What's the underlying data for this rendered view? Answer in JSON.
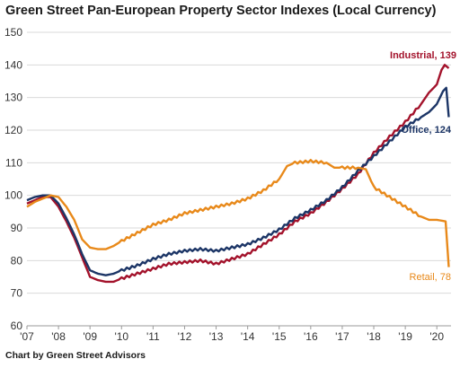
{
  "title": "Green Street Pan-European Property Sector Indexes (Local Currency)",
  "footer": "Chart by Green Street Advisors",
  "colors": {
    "industrial": "#a3122b",
    "office": "#1c3566",
    "retail": "#e8891a",
    "grid": "#d9d9d9",
    "axis": "#9a9a9a"
  },
  "chart_data": {
    "type": "line",
    "title": "Green Street Pan-European Property Sector Indexes (Local Currency)",
    "xlabel": "",
    "ylabel": "",
    "xlim": [
      2007.0,
      2020.45
    ],
    "ylim": [
      60,
      150
    ],
    "grid": true,
    "x_ticks": [
      "'07",
      "'08",
      "'09",
      "'10",
      "'11",
      "'12",
      "'13",
      "'14",
      "'15",
      "'16",
      "'17",
      "'18",
      "'19",
      "'20"
    ],
    "y_ticks": [
      60,
      70,
      80,
      90,
      100,
      110,
      120,
      130,
      140,
      150
    ],
    "series": [
      {
        "name": "Industrial",
        "end_label": "Industrial, 139",
        "color": "#a3122b",
        "points": [
          [
            2007.0,
            97.5
          ],
          [
            2007.25,
            98.5
          ],
          [
            2007.5,
            99.5
          ],
          [
            2007.75,
            99.5
          ],
          [
            2008.0,
            96.5
          ],
          [
            2008.25,
            92
          ],
          [
            2008.5,
            87
          ],
          [
            2008.75,
            81
          ],
          [
            2009.0,
            75
          ],
          [
            2009.25,
            74
          ],
          [
            2009.5,
            73.5
          ],
          [
            2009.75,
            73.5
          ],
          [
            2010.0,
            74.5
          ],
          [
            2010.5,
            76
          ],
          [
            2011.0,
            77.5
          ],
          [
            2011.5,
            79
          ],
          [
            2012.0,
            79.5
          ],
          [
            2012.5,
            80
          ],
          [
            2013.0,
            79
          ],
          [
            2013.5,
            80.5
          ],
          [
            2014.0,
            82
          ],
          [
            2014.5,
            85
          ],
          [
            2015.0,
            88
          ],
          [
            2015.5,
            92
          ],
          [
            2016.0,
            94.5
          ],
          [
            2016.5,
            98
          ],
          [
            2017.0,
            102
          ],
          [
            2017.5,
            106.5
          ],
          [
            2018.0,
            113
          ],
          [
            2018.5,
            118
          ],
          [
            2019.0,
            122.5
          ],
          [
            2019.5,
            128
          ],
          [
            2019.75,
            131.5
          ],
          [
            2020.0,
            134
          ],
          [
            2020.15,
            138.5
          ],
          [
            2020.25,
            140
          ],
          [
            2020.38,
            139
          ]
        ]
      },
      {
        "name": "Office",
        "end_label": "Office, 124",
        "color": "#1c3566",
        "points": [
          [
            2007.0,
            98.5
          ],
          [
            2007.25,
            99.5
          ],
          [
            2007.5,
            100
          ],
          [
            2007.75,
            100
          ],
          [
            2008.0,
            97.5
          ],
          [
            2008.25,
            93
          ],
          [
            2008.5,
            88
          ],
          [
            2008.75,
            82
          ],
          [
            2009.0,
            77
          ],
          [
            2009.25,
            76
          ],
          [
            2009.5,
            75.5
          ],
          [
            2009.75,
            76
          ],
          [
            2010.0,
            77
          ],
          [
            2010.5,
            78.5
          ],
          [
            2011.0,
            80.5
          ],
          [
            2011.5,
            82
          ],
          [
            2012.0,
            83
          ],
          [
            2012.5,
            83.5
          ],
          [
            2013.0,
            83
          ],
          [
            2013.5,
            84
          ],
          [
            2014.0,
            85
          ],
          [
            2014.5,
            87
          ],
          [
            2015.0,
            89.5
          ],
          [
            2015.5,
            93
          ],
          [
            2016.0,
            95.5
          ],
          [
            2016.5,
            98.5
          ],
          [
            2017.0,
            102.5
          ],
          [
            2017.5,
            107.5
          ],
          [
            2018.0,
            112
          ],
          [
            2018.5,
            116.5
          ],
          [
            2019.0,
            121
          ],
          [
            2019.5,
            124
          ],
          [
            2019.75,
            125.5
          ],
          [
            2020.0,
            128
          ],
          [
            2020.2,
            132
          ],
          [
            2020.3,
            133
          ],
          [
            2020.38,
            124
          ]
        ]
      },
      {
        "name": "Retail",
        "end_label": "Retail, 78",
        "color": "#e8891a",
        "points": [
          [
            2007.0,
            96.5
          ],
          [
            2007.25,
            98
          ],
          [
            2007.5,
            99
          ],
          [
            2007.75,
            100
          ],
          [
            2008.0,
            99.5
          ],
          [
            2008.25,
            96.5
          ],
          [
            2008.5,
            92.5
          ],
          [
            2008.75,
            86.5
          ],
          [
            2009.0,
            84
          ],
          [
            2009.25,
            83.5
          ],
          [
            2009.5,
            83.5
          ],
          [
            2009.75,
            84.5
          ],
          [
            2010.0,
            86
          ],
          [
            2010.5,
            88.5
          ],
          [
            2011.0,
            91
          ],
          [
            2011.5,
            92.5
          ],
          [
            2012.0,
            94.5
          ],
          [
            2012.5,
            95.5
          ],
          [
            2013.0,
            96.5
          ],
          [
            2013.5,
            97.5
          ],
          [
            2014.0,
            99
          ],
          [
            2014.5,
            101.5
          ],
          [
            2015.0,
            105
          ],
          [
            2015.25,
            109
          ],
          [
            2015.5,
            110
          ],
          [
            2016.0,
            110.5
          ],
          [
            2016.5,
            110
          ],
          [
            2016.75,
            108.5
          ],
          [
            2017.0,
            108.5
          ],
          [
            2017.5,
            108.5
          ],
          [
            2017.75,
            108
          ],
          [
            2018.0,
            102.5
          ],
          [
            2018.5,
            99.5
          ],
          [
            2019.0,
            96.5
          ],
          [
            2019.5,
            93.5
          ],
          [
            2019.75,
            92.5
          ],
          [
            2020.0,
            92.5
          ],
          [
            2020.28,
            92
          ],
          [
            2020.38,
            78
          ]
        ]
      }
    ]
  }
}
